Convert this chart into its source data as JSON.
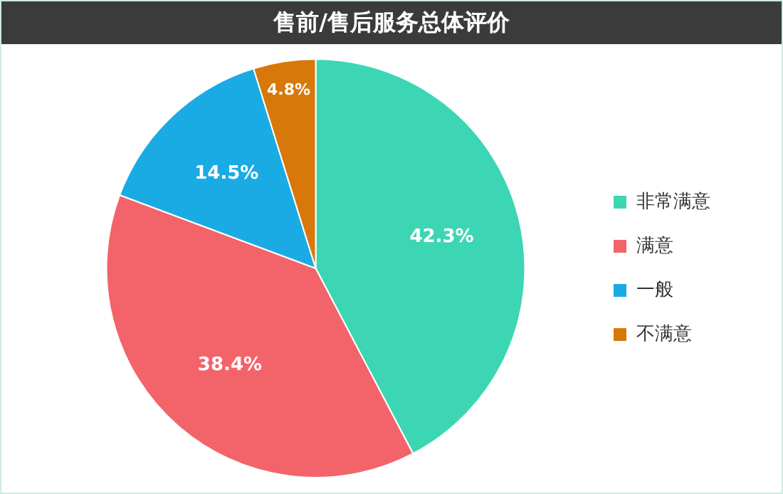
{
  "chart_data": {
    "type": "pie",
    "title": "售前/售后服务总体评价",
    "categories": [
      "非常满意",
      "满意",
      "一般",
      "不满意"
    ],
    "values": [
      42.3,
      38.4,
      14.5,
      4.8
    ],
    "value_labels": [
      "42.3%",
      "38.4%",
      "14.5%",
      "4.8%"
    ],
    "colors": [
      "#3dd6b5",
      "#f2646a",
      "#1aabe4",
      "#d8780a"
    ],
    "legend": "right"
  }
}
